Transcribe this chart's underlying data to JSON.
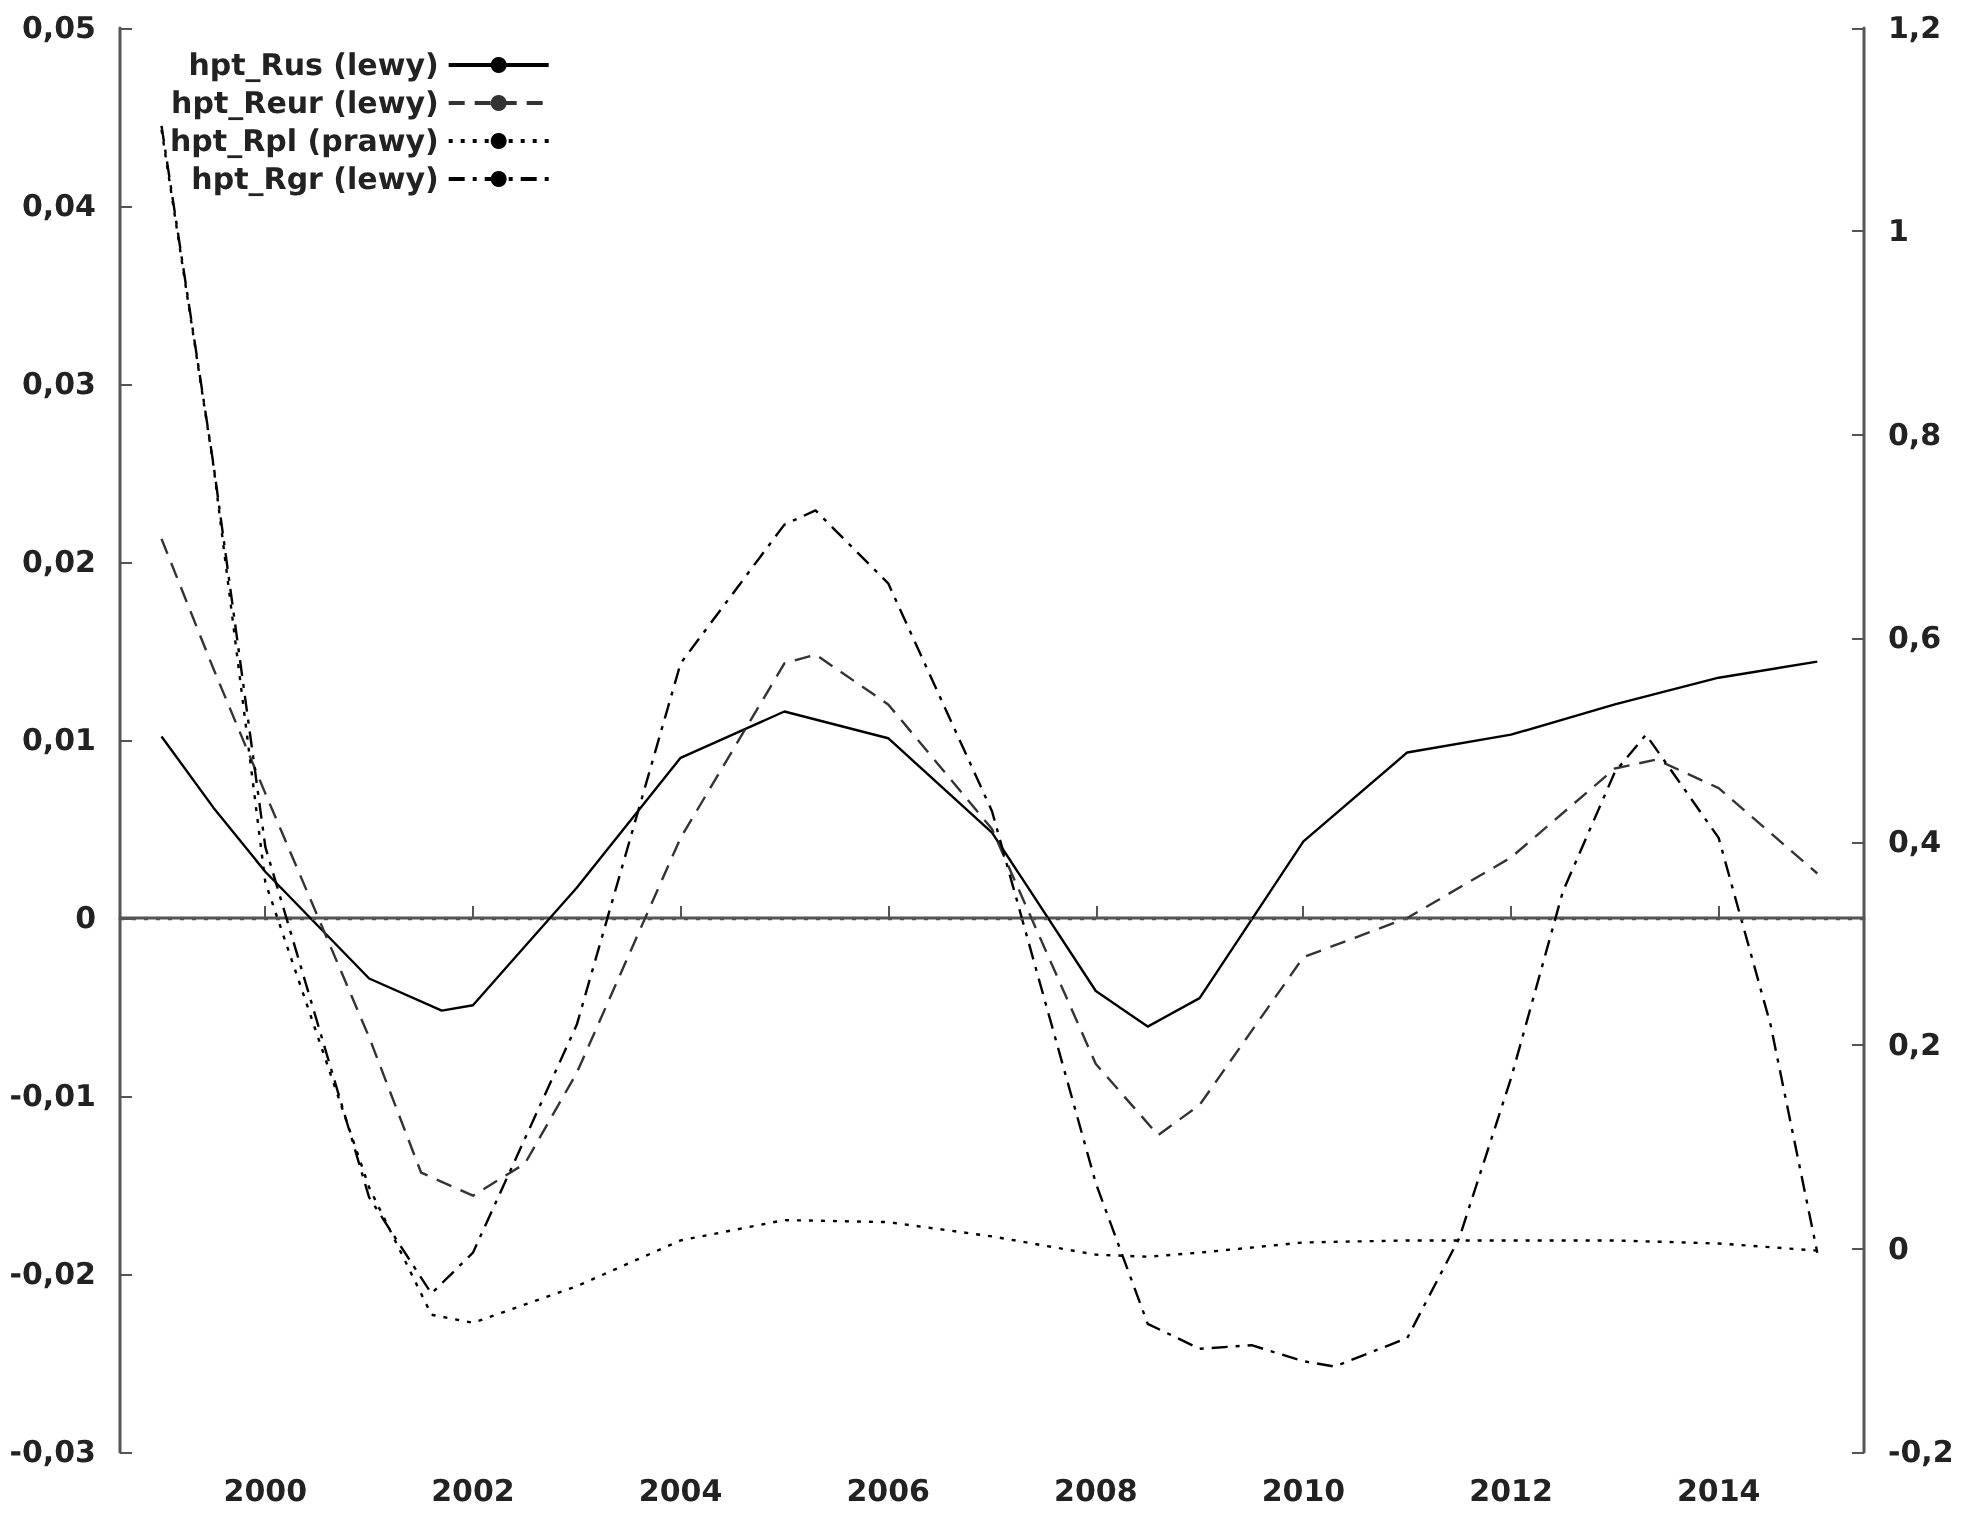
{
  "chart_data": {
    "type": "line",
    "xlim": [
      1998.6,
      2015.4
    ],
    "xticks": [
      2000,
      2002,
      2004,
      2006,
      2008,
      2010,
      2012,
      2014
    ],
    "ylim": [
      -0.03,
      0.05
    ],
    "yticks": [
      {
        "value": -0.03,
        "label": "-0,03"
      },
      {
        "value": -0.02,
        "label": "-0,02"
      },
      {
        "value": -0.01,
        "label": "-0,01"
      },
      0,
      {
        "value": 0.01,
        "label": "0,01"
      },
      {
        "value": 0.02,
        "label": "0,02"
      },
      {
        "value": 0.03,
        "label": "0,03"
      },
      {
        "value": 0.04,
        "label": "0,04"
      },
      {
        "value": 0.05,
        "label": "0,05"
      }
    ],
    "y2lim": [
      -0.2,
      1.2
    ],
    "y2ticks": [
      {
        "value": -0.2,
        "label": "-0,2"
      },
      0,
      {
        "value": 0.2,
        "label": "0,2"
      },
      {
        "value": 0.4,
        "label": "0,4"
      },
      {
        "value": 0.6,
        "label": "0,6"
      },
      {
        "value": 0.8,
        "label": "0,8"
      },
      1,
      {
        "value": 1.2,
        "label": "1,2"
      }
    ],
    "grid": false,
    "legend": "top left",
    "marker": "none",
    "ref_lines": [
      {
        "axis": "y",
        "value": 0,
        "color": "#555555",
        "line_style": "dotted"
      }
    ],
    "series": [
      {
        "name": "hpt_Rus (lewy)",
        "color": "#000000",
        "line_style": "solid",
        "x": [
          1999,
          1999.5,
          2000,
          2001,
          2001.7,
          2002,
          2003,
          2004,
          2005,
          2006,
          2007,
          2008,
          2008.5,
          2009,
          2010,
          2011,
          2012,
          2013,
          2014,
          2014.95
        ],
        "values": [
          0.0102,
          0.0062,
          0.0026,
          -0.0034,
          -0.0052,
          -0.0049,
          0.0017,
          0.009,
          0.0116,
          0.0101,
          0.0048,
          -0.0041,
          -0.0061,
          -0.0045,
          0.0043,
          0.0093,
          0.0103,
          0.012,
          0.0135,
          0.0144
        ]
      },
      {
        "name": "hpt_Reur (lewy)",
        "color": "#333333",
        "line_style": "dashed",
        "x": [
          1999,
          1999.5,
          2000,
          2001,
          2001.5,
          2002,
          2002.5,
          2003,
          2004,
          2005,
          2005.3,
          2006,
          2007,
          2008,
          2008.6,
          2009,
          2010,
          2011,
          2012,
          2013,
          2013.4,
          2014,
          2014.95
        ],
        "values": [
          0.0213,
          0.014,
          0.007,
          -0.0067,
          -0.0143,
          -0.0156,
          -0.0138,
          -0.0087,
          0.0045,
          0.0143,
          0.0148,
          0.012,
          0.005,
          -0.0082,
          -0.0122,
          -0.0105,
          -0.0022,
          0,
          0.0034,
          0.0084,
          0.0089,
          0.0073,
          0.0025
        ]
      },
      {
        "name": "hpt_Rpl (prawy)",
        "color": "#000000",
        "line_style": "dotted",
        "axis": "y2",
        "x": [
          1999,
          1999.5,
          2000,
          2001,
          2001.6,
          2002,
          2003,
          2004,
          2005,
          2006,
          2007,
          2008,
          2008.5,
          2009,
          2010,
          2011,
          2012,
          2013,
          2014,
          2014.95
        ],
        "values": [
          1.1,
          0.77,
          0.36,
          0.06,
          -0.065,
          -0.073,
          -0.037,
          0.008,
          0.028,
          0.026,
          0.012,
          -0.006,
          -0.008,
          -0.004,
          0.006,
          0.008,
          0.008,
          0.008,
          0.005,
          -0.002
        ]
      },
      {
        "name": "hpt_Rgr (lewy)",
        "color": "#000000",
        "line_style": "dashdot",
        "x": [
          1999,
          1999.5,
          2000,
          2001,
          2001.6,
          2002,
          2003,
          2004,
          2005,
          2005.3,
          2006,
          2007,
          2008,
          2008.5,
          2009,
          2009.5,
          2010,
          2010.3,
          2011,
          2011.5,
          2012,
          2012.5,
          2013,
          2013.3,
          2014,
          2014.5,
          2014.95
        ],
        "values": [
          0.0445,
          0.0255,
          0.004,
          -0.0157,
          -0.0211,
          -0.0188,
          -0.006,
          0.0143,
          0.0221,
          0.0229,
          0.0188,
          0.006,
          -0.0149,
          -0.0228,
          -0.0242,
          -0.024,
          -0.0249,
          -0.0252,
          -0.0236,
          -0.018,
          -0.009,
          0.0015,
          0.0082,
          0.0103,
          0.0045,
          -0.006,
          -0.0188
        ]
      }
    ]
  }
}
